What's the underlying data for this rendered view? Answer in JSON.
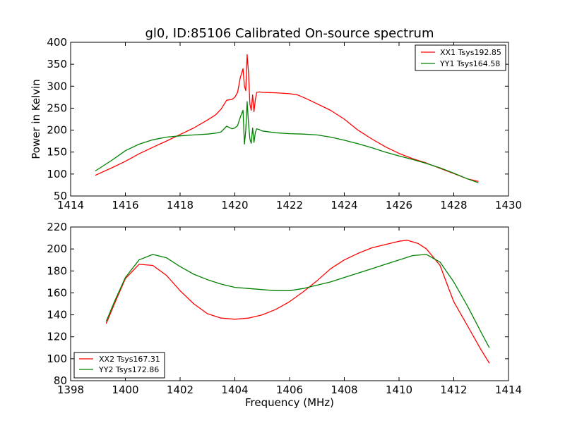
{
  "title": "gl0, ID:85106 Calibrated On-source spectrum",
  "chart_data": [
    {
      "type": "line",
      "title": "gl0, ID:85106 Calibrated On-source spectrum",
      "xlabel": "",
      "ylabel": "Power in Kelvin",
      "xlim": [
        1414,
        1430
      ],
      "ylim": [
        50,
        400
      ],
      "xticks": [
        "1414",
        "1416",
        "1418",
        "1420",
        "1422",
        "1424",
        "1426",
        "1428",
        "1430"
      ],
      "yticks": [
        "50",
        "100",
        "150",
        "200",
        "250",
        "300",
        "350",
        "400"
      ],
      "legend_position": "top-right",
      "series": [
        {
          "name": "XX1 Tsys192.85",
          "color": "#ff0000",
          "x": [
            1414.9,
            1415.5,
            1416,
            1416.5,
            1417,
            1417.5,
            1418,
            1418.5,
            1419,
            1419.3,
            1419.5,
            1419.7,
            1419.9,
            1420.0,
            1420.1,
            1420.2,
            1420.3,
            1420.35,
            1420.4,
            1420.45,
            1420.5,
            1420.55,
            1420.6,
            1420.65,
            1420.7,
            1420.75,
            1420.8,
            1420.9,
            1421,
            1421.5,
            1422,
            1422.3,
            1422.6,
            1423,
            1423.5,
            1424,
            1424.5,
            1425,
            1425.5,
            1426,
            1426.5,
            1427,
            1427.5,
            1428,
            1428.5,
            1428.9
          ],
          "values": [
            97,
            114,
            129,
            146,
            161,
            175,
            190,
            205,
            223,
            235,
            248,
            268,
            270,
            275,
            286,
            320,
            340,
            300,
            290,
            372,
            330,
            260,
            245,
            280,
            242,
            270,
            286,
            287,
            286,
            285,
            283,
            280,
            272,
            260,
            245,
            225,
            200,
            180,
            162,
            147,
            135,
            125,
            113,
            101,
            89,
            83
          ]
        },
        {
          "name": "YY1 Tsys164.58",
          "color": "#008000",
          "x": [
            1414.9,
            1415.5,
            1416,
            1416.5,
            1417,
            1417.5,
            1418,
            1418.5,
            1419,
            1419.3,
            1419.5,
            1419.7,
            1419.9,
            1420.0,
            1420.1,
            1420.2,
            1420.3,
            1420.35,
            1420.4,
            1420.45,
            1420.5,
            1420.55,
            1420.6,
            1420.65,
            1420.7,
            1420.75,
            1420.8,
            1420.9,
            1421,
            1421.5,
            1422,
            1422.5,
            1423,
            1423.5,
            1424,
            1424.5,
            1425,
            1425.5,
            1426,
            1426.5,
            1427,
            1427.5,
            1428,
            1428.5,
            1428.9
          ],
          "values": [
            107,
            131,
            153,
            168,
            178,
            184,
            187,
            189,
            191,
            193,
            196,
            209,
            203,
            205,
            210,
            230,
            245,
            168,
            200,
            265,
            215,
            180,
            170,
            205,
            172,
            195,
            203,
            201,
            198,
            194,
            192,
            191,
            189,
            184,
            177,
            169,
            160,
            150,
            141,
            133,
            124,
            114,
            102,
            89,
            80
          ]
        }
      ]
    },
    {
      "type": "line",
      "title": "",
      "xlabel": "Frequency (MHz)",
      "ylabel": "",
      "xlim": [
        1398,
        1414
      ],
      "ylim": [
        80,
        220
      ],
      "xticks": [
        "1398",
        "1400",
        "1402",
        "1404",
        "1406",
        "1408",
        "1410",
        "1412",
        "1414"
      ],
      "yticks": [
        "80",
        "100",
        "120",
        "140",
        "160",
        "180",
        "200",
        "220"
      ],
      "legend_position": "bottom-left",
      "series": [
        {
          "name": "XX2 Tsys167.31",
          "color": "#ff0000",
          "x": [
            1399.3,
            1399.6,
            1400,
            1400.5,
            1401,
            1401.5,
            1402,
            1402.5,
            1403,
            1403.5,
            1404,
            1404.5,
            1405,
            1405.5,
            1406,
            1406.5,
            1407,
            1407.5,
            1408,
            1408.5,
            1409,
            1409.5,
            1410,
            1410.3,
            1410.7,
            1411,
            1411.5,
            1411.8,
            1412,
            1412.5,
            1413,
            1413.3
          ],
          "values": [
            132,
            150,
            173,
            186,
            185,
            176,
            162,
            150,
            141,
            137,
            136,
            137,
            140,
            145,
            152,
            161,
            171,
            182,
            190,
            196,
            201,
            204,
            207,
            208,
            205,
            200,
            185,
            165,
            152,
            130,
            108,
            96
          ]
        },
        {
          "name": "YY2 Tsys172.86",
          "color": "#008000",
          "x": [
            1399.3,
            1399.6,
            1400,
            1400.5,
            1401,
            1401.5,
            1402,
            1402.5,
            1403,
            1403.5,
            1404,
            1404.5,
            1405,
            1405.5,
            1406,
            1406.5,
            1407,
            1407.5,
            1408,
            1408.5,
            1409,
            1409.5,
            1410,
            1410.5,
            1411,
            1411.5,
            1412,
            1412.5,
            1413,
            1413.3
          ],
          "values": [
            134,
            152,
            174,
            190,
            195,
            192,
            184,
            177,
            172,
            168,
            165,
            164,
            163,
            162,
            162,
            164,
            167,
            170,
            174,
            178,
            182,
            186,
            190,
            194,
            195,
            188,
            170,
            148,
            124,
            110
          ]
        }
      ]
    }
  ]
}
